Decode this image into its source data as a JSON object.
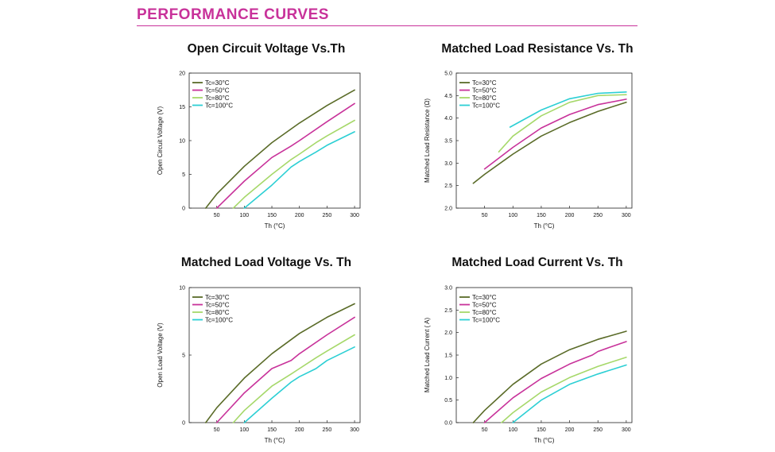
{
  "page": {
    "heading": "PERFORMANCE CURVES",
    "accent": "#c8329a"
  },
  "series_colors": [
    "#5a6b28",
    "#c8329a",
    "#a6d86a",
    "#2ccfd4"
  ],
  "chart_data": [
    {
      "type": "line",
      "title": "Open Circuit Voltage Vs.Th",
      "xlabel": "Th (°C)",
      "ylabel": "Open Circuit Voltage (V)",
      "xlim": [
        0,
        310
      ],
      "ylim": [
        0,
        20
      ],
      "xticks": [
        50,
        100,
        150,
        200,
        250,
        300
      ],
      "xtick_labels": [
        "50",
        "100",
        "150",
        "200",
        "250",
        "300"
      ],
      "yticks": [
        0,
        5,
        10,
        15,
        20
      ],
      "ytick_labels": [
        "0",
        "5",
        "10",
        "15",
        "20"
      ],
      "series": [
        {
          "name": "Tc=30°C",
          "x": [
            30,
            50,
            100,
            150,
            200,
            250,
            300
          ],
          "y": [
            0,
            2.1,
            6.2,
            9.7,
            12.6,
            15.2,
            17.5
          ]
        },
        {
          "name": "Tc=50°C",
          "x": [
            50,
            100,
            150,
            185,
            200,
            250,
            300
          ],
          "y": [
            0,
            4.0,
            7.5,
            9.2,
            10.0,
            12.8,
            15.5
          ]
        },
        {
          "name": "Tc=80°C",
          "x": [
            80,
            100,
            150,
            185,
            200,
            230,
            250,
            300
          ],
          "y": [
            0,
            1.6,
            5.0,
            7.2,
            8.0,
            9.7,
            10.7,
            13.0
          ]
        },
        {
          "name": "Tc=100°C",
          "x": [
            100,
            150,
            185,
            200,
            230,
            250,
            300
          ],
          "y": [
            0,
            3.4,
            6.1,
            6.9,
            8.3,
            9.3,
            11.3
          ]
        }
      ]
    },
    {
      "type": "line",
      "title": "Matched Load Resistance Vs. Th",
      "xlabel": "Th (°C)",
      "ylabel": "Matched Load Resistance (Ω)",
      "xlim": [
        0,
        310
      ],
      "ylim": [
        2.0,
        5.0
      ],
      "xticks": [
        50,
        100,
        150,
        200,
        250,
        300
      ],
      "xtick_labels": [
        "50",
        "100",
        "150",
        "200",
        "250",
        "300"
      ],
      "yticks": [
        2.0,
        2.5,
        3.0,
        3.5,
        4.0,
        4.5,
        5.0
      ],
      "ytick_labels": [
        "2.0",
        "2.5",
        "3.0",
        "3.5",
        "4.0",
        "4.5",
        "5.0"
      ],
      "series": [
        {
          "name": "Tc=30°C",
          "x": [
            30,
            50,
            100,
            150,
            200,
            250,
            300
          ],
          "y": [
            2.55,
            2.75,
            3.2,
            3.6,
            3.9,
            4.15,
            4.35
          ]
        },
        {
          "name": "Tc=50°C",
          "x": [
            50,
            100,
            150,
            200,
            250,
            300
          ],
          "y": [
            2.87,
            3.35,
            3.78,
            4.08,
            4.3,
            4.42
          ]
        },
        {
          "name": "Tc=80°C",
          "x": [
            75,
            100,
            150,
            200,
            250,
            300
          ],
          "y": [
            3.25,
            3.6,
            4.05,
            4.35,
            4.5,
            4.52
          ]
        },
        {
          "name": "Tc=100°C",
          "x": [
            95,
            150,
            200,
            250,
            300
          ],
          "y": [
            3.8,
            4.18,
            4.43,
            4.55,
            4.58
          ]
        }
      ]
    },
    {
      "type": "line",
      "title": "Matched Load Voltage Vs. Th",
      "xlabel": "Th (°C)",
      "ylabel": "Open Load Voltage (V)",
      "xlim": [
        0,
        310
      ],
      "ylim": [
        0,
        10
      ],
      "xticks": [
        50,
        100,
        150,
        200,
        250,
        300
      ],
      "xtick_labels": [
        "50",
        "100",
        "150",
        "200",
        "250",
        "300"
      ],
      "yticks": [
        0,
        5,
        10
      ],
      "ytick_labels": [
        "0",
        "5",
        "10"
      ],
      "series": [
        {
          "name": "Tc=30°C",
          "x": [
            30,
            50,
            100,
            150,
            200,
            250,
            300
          ],
          "y": [
            0,
            1.1,
            3.3,
            5.1,
            6.6,
            7.8,
            8.8
          ]
        },
        {
          "name": "Tc=50°C",
          "x": [
            50,
            100,
            150,
            185,
            200,
            250,
            300
          ],
          "y": [
            0,
            2.2,
            4.0,
            4.6,
            5.1,
            6.5,
            7.8
          ]
        },
        {
          "name": "Tc=80°C",
          "x": [
            80,
            100,
            150,
            185,
            200,
            230,
            250,
            300
          ],
          "y": [
            0,
            0.9,
            2.7,
            3.6,
            4.0,
            4.8,
            5.3,
            6.5
          ]
        },
        {
          "name": "Tc=100°C",
          "x": [
            100,
            150,
            185,
            200,
            230,
            250,
            300
          ],
          "y": [
            0,
            1.8,
            3.0,
            3.4,
            4.0,
            4.6,
            5.6
          ]
        }
      ]
    },
    {
      "type": "line",
      "title": "Matched Load Current Vs. Th",
      "xlabel": "Th (°C)",
      "ylabel": "Matched Load Current ( A)",
      "xlim": [
        0,
        310
      ],
      "ylim": [
        0,
        3.0
      ],
      "xticks": [
        50,
        100,
        150,
        200,
        250,
        300
      ],
      "xtick_labels": [
        "50",
        "100",
        "150",
        "200",
        "250",
        "300"
      ],
      "yticks": [
        0,
        0.5,
        1.0,
        1.5,
        2.0,
        2.5,
        3.0
      ],
      "ytick_labels": [
        "0.0",
        "0.5",
        "1.0",
        "1.5",
        "2.0",
        "2.5",
        "3.0"
      ],
      "series": [
        {
          "name": "Tc=30°C",
          "x": [
            30,
            50,
            100,
            150,
            200,
            250,
            300
          ],
          "y": [
            0,
            0.27,
            0.85,
            1.3,
            1.62,
            1.85,
            2.03
          ]
        },
        {
          "name": "Tc=50°C",
          "x": [
            50,
            100,
            150,
            200,
            230,
            240,
            250,
            270,
            300
          ],
          "y": [
            0,
            0.55,
            0.98,
            1.3,
            1.45,
            1.5,
            1.58,
            1.67,
            1.8
          ]
        },
        {
          "name": "Tc=80°C",
          "x": [
            80,
            100,
            150,
            200,
            250,
            300
          ],
          "y": [
            0,
            0.22,
            0.68,
            1.0,
            1.25,
            1.45
          ]
        },
        {
          "name": "Tc=100°C",
          "x": [
            100,
            150,
            200,
            250,
            300
          ],
          "y": [
            0,
            0.5,
            0.85,
            1.08,
            1.28
          ]
        }
      ]
    }
  ]
}
